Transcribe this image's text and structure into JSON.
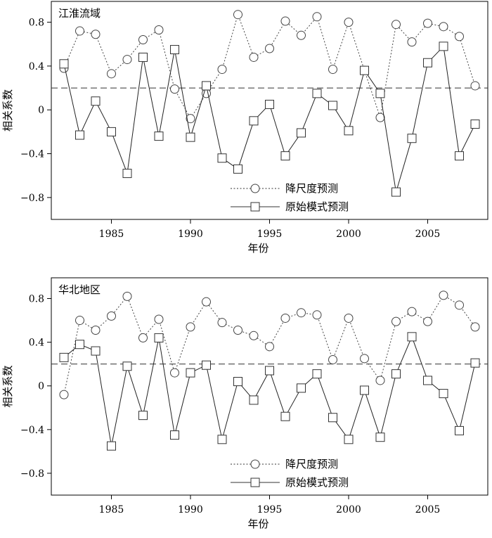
{
  "chart_data": [
    {
      "type": "line",
      "title": "江淮流域",
      "xlabel": "年份",
      "ylabel": "相关系数",
      "xlim": [
        1981.2,
        2008.8
      ],
      "ylim": [
        -1.0,
        0.99
      ],
      "xticks": [
        1985,
        1990,
        1995,
        2000,
        2005
      ],
      "yticks": [
        0.8,
        0.4,
        0,
        -0.4,
        -0.8
      ],
      "ytick_labels": [
        "0.8",
        "0.4",
        "0",
        "−0.4",
        "−0.8"
      ],
      "reference_line": 0.2,
      "legend_position": "bottom-center",
      "x": [
        1982,
        1983,
        1984,
        1985,
        1986,
        1987,
        1988,
        1989,
        1990,
        1991,
        1992,
        1993,
        1994,
        1995,
        1996,
        1997,
        1998,
        1999,
        2000,
        2001,
        2002,
        2003,
        2004,
        2005,
        2006,
        2007,
        2008
      ],
      "series": [
        {
          "name": "降尺度预测",
          "marker": "circle",
          "line": "dotted",
          "values": [
            0.38,
            0.72,
            0.69,
            0.33,
            0.46,
            0.64,
            0.73,
            0.19,
            -0.08,
            0.15,
            0.37,
            0.87,
            0.48,
            0.56,
            0.81,
            0.68,
            0.85,
            0.37,
            0.8,
            0.36,
            -0.07,
            0.78,
            0.62,
            0.79,
            0.76,
            0.67,
            0.22
          ]
        },
        {
          "name": "原始模式预测",
          "marker": "square",
          "line": "solid",
          "values": [
            0.42,
            -0.23,
            0.08,
            -0.2,
            -0.58,
            0.48,
            -0.24,
            0.55,
            -0.25,
            0.22,
            -0.44,
            -0.54,
            -0.1,
            0.05,
            -0.42,
            -0.21,
            0.15,
            0.04,
            -0.19,
            0.36,
            0.15,
            -0.75,
            -0.26,
            0.43,
            0.58,
            -0.42,
            -0.13
          ]
        }
      ]
    },
    {
      "type": "line",
      "title": "华北地区",
      "xlabel": "年份",
      "ylabel": "相关系数",
      "xlim": [
        1981.2,
        2008.8
      ],
      "ylim": [
        -1.0,
        0.99
      ],
      "xticks": [
        1985,
        1990,
        1995,
        2000,
        2005
      ],
      "yticks": [
        0.8,
        0.4,
        0,
        -0.4,
        -0.8
      ],
      "ytick_labels": [
        "0.8",
        "0.4",
        "0",
        "−0.4",
        "−0.8"
      ],
      "reference_line": 0.2,
      "legend_position": "bottom-center",
      "x": [
        1982,
        1983,
        1984,
        1985,
        1986,
        1987,
        1988,
        1989,
        1990,
        1991,
        1992,
        1993,
        1994,
        1995,
        1996,
        1997,
        1998,
        1999,
        2000,
        2001,
        2002,
        2003,
        2004,
        2005,
        2006,
        2007,
        2008
      ],
      "series": [
        {
          "name": "降尺度预测",
          "marker": "circle",
          "line": "dotted",
          "values": [
            -0.08,
            0.6,
            0.51,
            0.64,
            0.82,
            0.44,
            0.61,
            0.12,
            0.54,
            0.77,
            0.58,
            0.51,
            0.46,
            0.36,
            0.62,
            0.67,
            0.65,
            0.24,
            0.62,
            0.25,
            0.05,
            0.59,
            0.68,
            0.59,
            0.83,
            0.74,
            0.54
          ]
        },
        {
          "name": "原始模式预测",
          "marker": "square",
          "line": "solid",
          "values": [
            0.26,
            0.38,
            0.32,
            -0.55,
            0.18,
            -0.27,
            0.44,
            -0.45,
            0.12,
            0.19,
            -0.49,
            0.04,
            -0.13,
            0.14,
            -0.28,
            -0.02,
            0.11,
            -0.29,
            -0.49,
            -0.04,
            -0.47,
            0.11,
            0.45,
            0.05,
            -0.07,
            -0.41,
            0.21
          ]
        }
      ]
    }
  ]
}
